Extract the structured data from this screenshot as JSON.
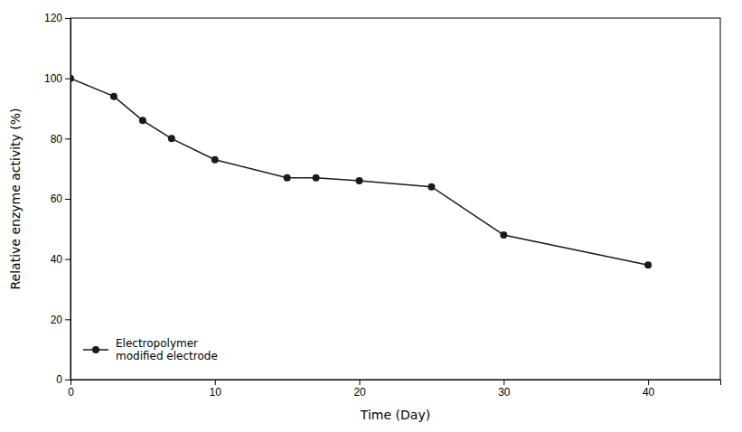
{
  "chart_data": {
    "type": "line",
    "xlabel": "Time (Day)",
    "ylabel": "Relative enzyme activity (%)",
    "x": [
      0,
      3,
      5,
      7,
      10,
      15,
      17,
      20,
      25,
      30,
      40
    ],
    "series": [
      {
        "name": "Electropolymer\nmodified electrode",
        "color": "#1a1a1a",
        "marker": "circle",
        "values": [
          100,
          94,
          86,
          80,
          73,
          67,
          67,
          66,
          64,
          48,
          38
        ]
      }
    ],
    "xlim": [
      0,
      45
    ],
    "ylim": [
      0,
      120
    ],
    "xticks": [
      0,
      10,
      20,
      30,
      40
    ],
    "yticks": [
      0,
      20,
      40,
      60,
      80,
      100,
      120
    ],
    "grid": false,
    "legend": "lower left"
  }
}
